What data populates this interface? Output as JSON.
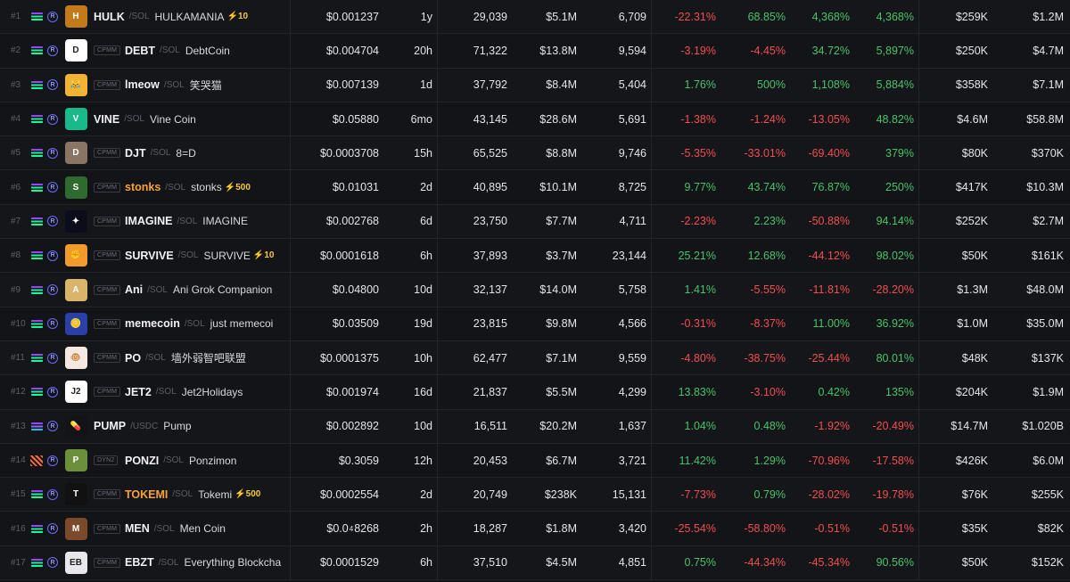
{
  "rows": [
    {
      "rank": "#1",
      "chain": "sol",
      "badge": "",
      "avatar_bg": "#c27a1a",
      "avatar_txt": "H",
      "symbol": "HULK",
      "quote": "SOL",
      "name": "HULKAMANIA",
      "boost": "⚡10",
      "gold": false,
      "price": "$0.001237",
      "age": "1y",
      "txns": "29,039",
      "volume": "$5.1M",
      "makers": "6,709",
      "c5m": "-22.31%",
      "c1h": "68.85%",
      "c6h": "4,368%",
      "c24h": "4,368%",
      "liquidity": "$259K",
      "mcap": "$1.2M"
    },
    {
      "rank": "#2",
      "chain": "sol",
      "badge": "CPMM",
      "avatar_bg": "#ffffff",
      "avatar_txt": "D",
      "symbol": "DEBT",
      "quote": "SOL",
      "name": "DebtCoin",
      "boost": "",
      "gold": false,
      "price": "$0.004704",
      "age": "20h",
      "txns": "71,322",
      "volume": "$13.8M",
      "makers": "9,594",
      "c5m": "-3.19%",
      "c1h": "-4.45%",
      "c6h": "34.72%",
      "c24h": "5,897%",
      "liquidity": "$250K",
      "mcap": "$4.7M"
    },
    {
      "rank": "#3",
      "chain": "sol",
      "badge": "CPMM",
      "avatar_bg": "#f2b233",
      "avatar_txt": "😹",
      "symbol": "lmeow",
      "quote": "SOL",
      "name": "笑哭猫",
      "boost": "",
      "gold": false,
      "price": "$0.007139",
      "age": "1d",
      "txns": "37,792",
      "volume": "$8.4M",
      "makers": "5,404",
      "c5m": "1.76%",
      "c1h": "500%",
      "c6h": "1,108%",
      "c24h": "5,884%",
      "liquidity": "$358K",
      "mcap": "$7.1M"
    },
    {
      "rank": "#4",
      "chain": "sol",
      "badge": "",
      "avatar_bg": "#1ab98a",
      "avatar_txt": "V",
      "symbol": "VINE",
      "quote": "SOL",
      "name": "Vine Coin",
      "boost": "",
      "gold": false,
      "price": "$0.05880",
      "age": "6mo",
      "txns": "43,145",
      "volume": "$28.6M",
      "makers": "5,691",
      "c5m": "-1.38%",
      "c1h": "-1.24%",
      "c6h": "-13.05%",
      "c24h": "48.82%",
      "liquidity": "$4.6M",
      "mcap": "$58.8M"
    },
    {
      "rank": "#5",
      "chain": "sol",
      "badge": "CPMM",
      "avatar_bg": "#8a7464",
      "avatar_txt": "D",
      "symbol": "DJT",
      "quote": "SOL",
      "name": "8=D",
      "boost": "",
      "gold": false,
      "price": "$0.0003708",
      "age": "15h",
      "txns": "65,525",
      "volume": "$8.8M",
      "makers": "9,746",
      "c5m": "-5.35%",
      "c1h": "-33.01%",
      "c6h": "-69.40%",
      "c24h": "379%",
      "liquidity": "$80K",
      "mcap": "$370K"
    },
    {
      "rank": "#6",
      "chain": "sol",
      "badge": "CPMM",
      "avatar_bg": "#2f6b2f",
      "avatar_txt": "S",
      "symbol": "stonks",
      "quote": "SOL",
      "name": "stonks",
      "boost": "⚡500",
      "gold": true,
      "price": "$0.01031",
      "age": "2d",
      "txns": "40,895",
      "volume": "$10.1M",
      "makers": "8,725",
      "c5m": "9.77%",
      "c1h": "43.74%",
      "c6h": "76.87%",
      "c24h": "250%",
      "liquidity": "$417K",
      "mcap": "$10.3M"
    },
    {
      "rank": "#7",
      "chain": "sol",
      "badge": "CPMM",
      "avatar_bg": "#0b0d1a",
      "avatar_txt": "✦",
      "symbol": "IMAGINE",
      "quote": "SOL",
      "name": "IMAGINE",
      "boost": "",
      "gold": false,
      "price": "$0.002768",
      "age": "6d",
      "txns": "23,750",
      "volume": "$7.7M",
      "makers": "4,711",
      "c5m": "-2.23%",
      "c1h": "2.23%",
      "c6h": "-50.88%",
      "c24h": "94.14%",
      "liquidity": "$252K",
      "mcap": "$2.7M"
    },
    {
      "rank": "#8",
      "chain": "sol",
      "badge": "CPMM",
      "avatar_bg": "#f29a2e",
      "avatar_txt": "✊",
      "symbol": "SURVIVE",
      "quote": "SOL",
      "name": "SURVIVE",
      "boost": "⚡10",
      "gold": false,
      "price": "$0.0001618",
      "age": "6h",
      "txns": "37,893",
      "volume": "$3.7M",
      "makers": "23,144",
      "c5m": "25.21%",
      "c1h": "12.68%",
      "c6h": "-44.12%",
      "c24h": "98.02%",
      "liquidity": "$50K",
      "mcap": "$161K"
    },
    {
      "rank": "#9",
      "chain": "sol",
      "badge": "CPMM",
      "avatar_bg": "#d9b46a",
      "avatar_txt": "A",
      "symbol": "Ani",
      "quote": "SOL",
      "name": "Ani Grok Companion",
      "boost": "",
      "gold": false,
      "price": "$0.04800",
      "age": "10d",
      "txns": "32,137",
      "volume": "$14.0M",
      "makers": "5,758",
      "c5m": "1.41%",
      "c1h": "-5.55%",
      "c6h": "-11.81%",
      "c24h": "-28.20%",
      "liquidity": "$1.3M",
      "mcap": "$48.0M"
    },
    {
      "rank": "#10",
      "chain": "sol",
      "badge": "CPMM",
      "avatar_bg": "#2b3fa8",
      "avatar_txt": "🪙",
      "symbol": "memecoin",
      "quote": "SOL",
      "name": "just memecoi",
      "boost": "",
      "gold": false,
      "price": "$0.03509",
      "age": "19d",
      "txns": "23,815",
      "volume": "$9.8M",
      "makers": "4,566",
      "c5m": "-0.31%",
      "c1h": "-8.37%",
      "c6h": "11.00%",
      "c24h": "36.92%",
      "liquidity": "$1.0M",
      "mcap": "$35.0M"
    },
    {
      "rank": "#11",
      "chain": "sol",
      "badge": "CPMM",
      "avatar_bg": "#f4e8e0",
      "avatar_txt": "🐵",
      "symbol": "PO",
      "quote": "SOL",
      "name": "墙外弱智吧联盟",
      "boost": "",
      "gold": false,
      "price": "$0.0001375",
      "age": "10h",
      "txns": "62,477",
      "volume": "$7.1M",
      "makers": "9,559",
      "c5m": "-4.80%",
      "c1h": "-38.75%",
      "c6h": "-25.44%",
      "c24h": "80.01%",
      "liquidity": "$48K",
      "mcap": "$137K"
    },
    {
      "rank": "#12",
      "chain": "sol",
      "badge": "CPMM",
      "avatar_bg": "#ffffff",
      "avatar_txt": "J2",
      "symbol": "JET2",
      "quote": "SOL",
      "name": "Jet2Holidays",
      "boost": "",
      "gold": false,
      "price": "$0.001974",
      "age": "16d",
      "txns": "21,837",
      "volume": "$5.5M",
      "makers": "4,299",
      "c5m": "13.83%",
      "c1h": "-3.10%",
      "c6h": "0.42%",
      "c24h": "135%",
      "liquidity": "$204K",
      "mcap": "$1.9M"
    },
    {
      "rank": "#13",
      "chain": "usdc",
      "badge": "",
      "avatar_bg": "#131418",
      "avatar_txt": "💊",
      "symbol": "PUMP",
      "quote": "USDC",
      "name": "Pump",
      "boost": "",
      "gold": false,
      "price": "$0.002892",
      "age": "10d",
      "txns": "16,511",
      "volume": "$20.2M",
      "makers": "1,637",
      "c5m": "1.04%",
      "c1h": "0.48%",
      "c6h": "-1.92%",
      "c24h": "-20.49%",
      "liquidity": "$14.7M",
      "mcap": "$1.020B"
    },
    {
      "rank": "#14",
      "chain": "meteora",
      "badge": "DYN2",
      "avatar_bg": "#6b8f3a",
      "avatar_txt": "P",
      "symbol": "PONZI",
      "quote": "SOL",
      "name": "Ponzimon",
      "boost": "",
      "gold": false,
      "price": "$0.3059",
      "age": "12h",
      "txns": "20,453",
      "volume": "$6.7M",
      "makers": "3,721",
      "c5m": "11.42%",
      "c1h": "1.29%",
      "c6h": "-70.96%",
      "c24h": "-17.58%",
      "liquidity": "$426K",
      "mcap": "$6.0M"
    },
    {
      "rank": "#15",
      "chain": "sol",
      "badge": "CPMM",
      "avatar_bg": "#111111",
      "avatar_txt": "T",
      "symbol": "TOKEMI",
      "quote": "SOL",
      "name": "Tokemi",
      "boost": "⚡500",
      "gold": true,
      "price": "$0.0002554",
      "age": "2d",
      "txns": "20,749",
      "volume": "$238K",
      "makers": "15,131",
      "c5m": "-7.73%",
      "c1h": "0.79%",
      "c6h": "-28.02%",
      "c24h": "-19.78%",
      "liquidity": "$76K",
      "mcap": "$255K"
    },
    {
      "rank": "#16",
      "chain": "sol",
      "badge": "CPMM",
      "avatar_bg": "#7a4a2a",
      "avatar_txt": "M",
      "symbol": "MEN",
      "quote": "SOL",
      "name": "Men Coin",
      "boost": "",
      "gold": false,
      "price_pre": "$0.0",
      "price_sub": "4",
      "price_post": "8268",
      "age": "2h",
      "txns": "18,287",
      "volume": "$1.8M",
      "makers": "3,420",
      "c5m": "-25.54%",
      "c1h": "-58.80%",
      "c6h": "-0.51%",
      "c24h": "-0.51%",
      "liquidity": "$35K",
      "mcap": "$82K"
    },
    {
      "rank": "#17",
      "chain": "sol",
      "badge": "CPMM",
      "avatar_bg": "#e8e8ec",
      "avatar_txt": "EB",
      "symbol": "EBZT",
      "quote": "SOL",
      "name": "Everything Blockcha",
      "boost": "",
      "gold": false,
      "price": "$0.0001529",
      "age": "6h",
      "txns": "37,510",
      "volume": "$4.5M",
      "makers": "4,851",
      "c5m": "0.75%",
      "c1h": "-44.34%",
      "c6h": "-45.34%",
      "c24h": "90.56%",
      "liquidity": "$50K",
      "mcap": "$152K"
    }
  ]
}
